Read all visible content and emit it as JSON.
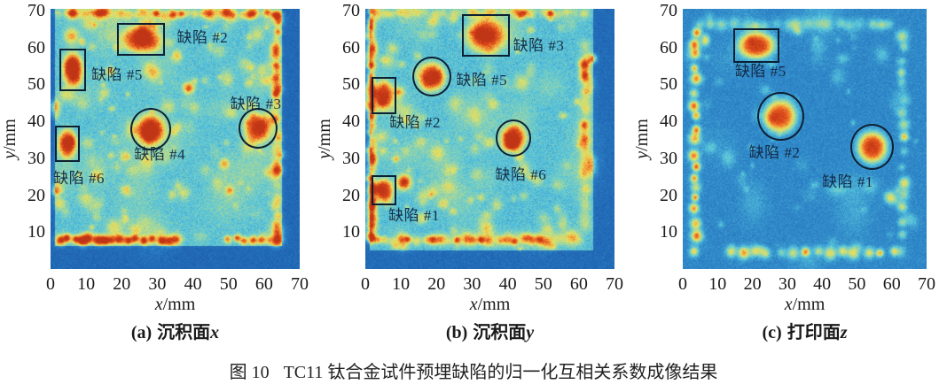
{
  "figure_caption": {
    "label": "图 10",
    "text": "TC11 钛合金试件预埋缺陷的归一化互相关系数成像结果"
  },
  "style": {
    "marker_color": "#0d2033",
    "annotation_text_color": "rgba(16,34,60,0.92)",
    "heatmap_high_color": "#e5541d",
    "heatmap_mid_color": "#e8e25e",
    "heatmap_cyan_background": "#58c6dd",
    "heatmap_blue_background": "#2e86c8"
  },
  "chart_data": [
    {
      "type": "heatmap",
      "panel": "a",
      "caption_prefix": "(a)",
      "caption_title": "沉积面",
      "caption_var": "x",
      "xlabel_var": "x",
      "xlabel_unit": "/mm",
      "ylabel_var": "y",
      "ylabel_unit": "/mm",
      "xlim": [
        0,
        70
      ],
      "ylim": [
        0,
        70.5
      ],
      "x_ticks": [
        0,
        10,
        20,
        30,
        40,
        50,
        60,
        70
      ],
      "y_ticks": [
        10,
        20,
        30,
        40,
        50,
        60,
        70
      ],
      "colormap": "jet",
      "defects": [
        {
          "label": "缺陷 #2",
          "marker": "rect",
          "x": 19.0,
          "y": 58.0,
          "w": 13.0,
          "h": 8.5,
          "label_x": 35.5,
          "label_y": 62.5
        },
        {
          "label": "缺陷 #5",
          "marker": "rect",
          "x": 2.8,
          "y": 48.5,
          "w": 6.9,
          "h": 11.0,
          "label_x": 11.5,
          "label_y": 52.5
        },
        {
          "label": "缺陷 #3",
          "marker": "circle",
          "cx": 58.3,
          "cy": 38.2,
          "r": 5.3,
          "label_x": 50.5,
          "label_y": 44.5
        },
        {
          "label": "缺陷 #4",
          "marker": "circle",
          "cx": 28.1,
          "cy": 37.8,
          "r": 5.5,
          "label_x": 23.5,
          "label_y": 31.0
        },
        {
          "label": "缺陷 #6",
          "marker": "rect",
          "x": 1.5,
          "y": 29.2,
          "w": 6.4,
          "h": 9.5,
          "label_x": 0.8,
          "label_y": 24.5
        }
      ]
    },
    {
      "type": "heatmap",
      "panel": "b",
      "caption_prefix": "(b)",
      "caption_title": "沉积面",
      "caption_var": "y",
      "xlabel_var": "x",
      "xlabel_unit": "/mm",
      "ylabel_var": "y",
      "ylabel_unit": "/mm",
      "xlim": [
        0,
        70
      ],
      "ylim": [
        0,
        70.5
      ],
      "x_ticks": [
        0,
        10,
        20,
        30,
        40,
        50,
        60,
        70
      ],
      "y_ticks": [
        10,
        20,
        30,
        40,
        50,
        60,
        70
      ],
      "colormap": "jet",
      "defects": [
        {
          "label": "缺陷 #3",
          "marker": "rect",
          "x": 27.4,
          "y": 57.8,
          "w": 13.0,
          "h": 11.0,
          "label_x": 41.5,
          "label_y": 60.5
        },
        {
          "label": "缺陷 #5",
          "marker": "circle",
          "cx": 18.7,
          "cy": 52.1,
          "r": 5.2,
          "label_x": 25.5,
          "label_y": 51.0
        },
        {
          "label": "缺陷 #2",
          "marker": "rect",
          "x": 2.0,
          "y": 42.3,
          "w": 6.4,
          "h": 9.6,
          "label_x": 6.8,
          "label_y": 39.5
        },
        {
          "label": "缺陷 #6",
          "marker": "circle",
          "cx": 41.6,
          "cy": 35.4,
          "r": 4.8,
          "label_x": 36.5,
          "label_y": 25.5
        },
        {
          "label": "缺陷 #1",
          "marker": "rect",
          "x": 2.0,
          "y": 17.5,
          "w": 6.4,
          "h": 7.6,
          "label_x": 6.5,
          "label_y": 14.5
        }
      ]
    },
    {
      "type": "heatmap",
      "panel": "c",
      "caption_prefix": "(c)",
      "caption_title": "打印面",
      "caption_var": "z",
      "xlabel_var": "x",
      "xlabel_unit": "/mm",
      "ylabel_var": "y",
      "ylabel_unit": "/mm",
      "xlim": [
        0,
        70
      ],
      "ylim": [
        0,
        70.5
      ],
      "x_ticks": [
        0,
        10,
        20,
        30,
        40,
        50,
        60,
        70
      ],
      "y_ticks": [
        10,
        20,
        30,
        40,
        50,
        60,
        70
      ],
      "colormap": "jet",
      "defects": [
        {
          "label": "缺陷 #5",
          "marker": "rect",
          "x": 14.8,
          "y": 56.2,
          "w": 12.8,
          "h": 8.8,
          "label_x": 15.0,
          "label_y": 53.5
        },
        {
          "label": "缺陷 #2",
          "marker": "circle",
          "cx": 28.1,
          "cy": 41.4,
          "r": 6.4,
          "label_x": 19.0,
          "label_y": 31.5
        },
        {
          "label": "缺陷 #1",
          "marker": "circle",
          "cx": 54.4,
          "cy": 33.0,
          "r": 6.0,
          "label_x": 40.0,
          "label_y": 23.5
        }
      ]
    }
  ]
}
